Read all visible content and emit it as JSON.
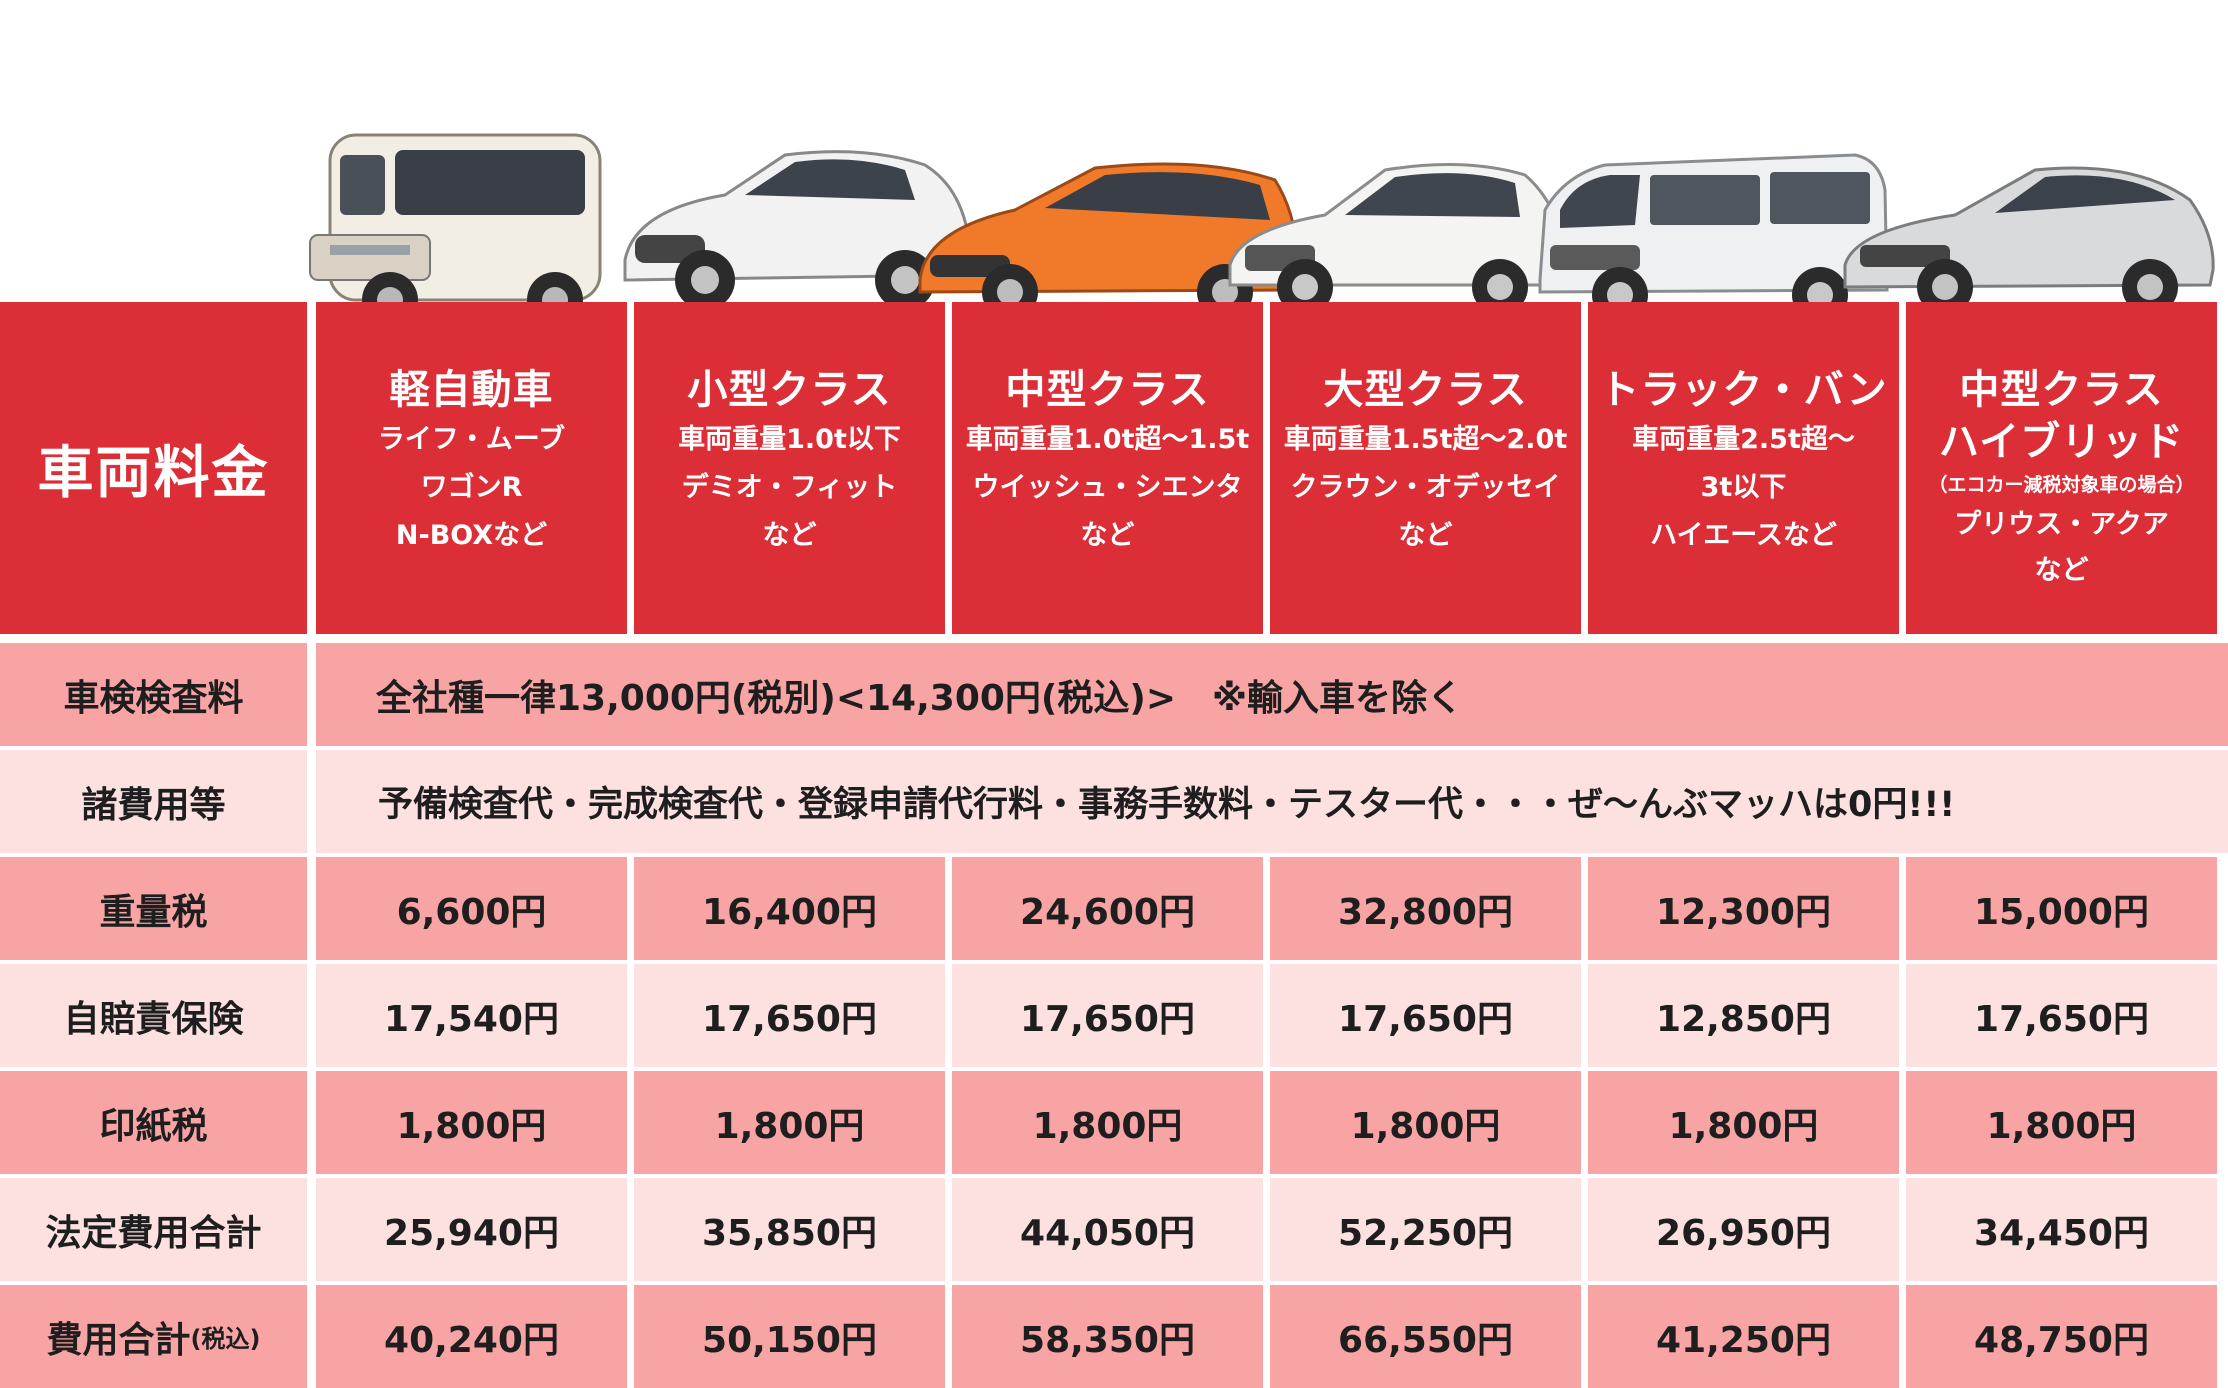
{
  "header": {
    "corner_label": "車両料金",
    "columns": [
      {
        "title": "軽自動車",
        "lines": [
          "ライフ・ムーブ",
          "ワゴンR",
          "N-BOXなど"
        ],
        "car_color": "#f3eee4",
        "car_icon": "kei-car-icon"
      },
      {
        "title": "小型クラス",
        "lines": [
          "車両重量1.0t以下",
          "デミオ・フィット",
          "など"
        ],
        "car_color": "#f2f2f2",
        "car_icon": "compact-car-icon"
      },
      {
        "title": "中型クラス",
        "lines": [
          "車両重量1.0t超〜1.5t",
          "ウイッシュ・シエンタ",
          "など"
        ],
        "car_color": "#f07a2a",
        "car_icon": "minivan-car-icon"
      },
      {
        "title": "大型クラス",
        "lines": [
          "車両重量1.5t超〜2.0t",
          "クラウン・オデッセイ",
          "など"
        ],
        "car_color": "#f4f4f2",
        "car_icon": "sedan-car-icon"
      },
      {
        "title": "トラック・バン",
        "lines": [
          "車両重量2.5t超〜",
          "3t以下",
          "ハイエースなど"
        ],
        "car_color": "#eef0f1",
        "car_icon": "van-car-icon"
      },
      {
        "title": "中型クラス",
        "title2": "ハイブリッド",
        "note": "（エコカー減税対象車の場合）",
        "lines": [
          "プリウス・アクア",
          "など"
        ],
        "car_color": "#d9dadb",
        "car_icon": "hybrid-car-icon"
      }
    ]
  },
  "rows": {
    "inspection": {
      "label": "車検検査料",
      "text": "全社種一律13,000円(税別)<14,300円(税込)>　※輸入車を除く"
    },
    "misc": {
      "label": "諸費用等",
      "text": "予備検査代・完成検査代・登録申請代行料・事務手数料・テスター代・・・ぜ〜んぶマッハは0円!!!"
    },
    "weight_tax": {
      "label": "重量税",
      "values": [
        "6,600円",
        "16,400円",
        "24,600円",
        "32,800円",
        "12,300円",
        "15,000円"
      ]
    },
    "insurance": {
      "label": "自賠責保険",
      "values": [
        "17,540円",
        "17,650円",
        "17,650円",
        "17,650円",
        "12,850円",
        "17,650円"
      ]
    },
    "stamp_tax": {
      "label": "印紙税",
      "values": [
        "1,800円",
        "1,800円",
        "1,800円",
        "1,800円",
        "1,800円",
        "1,800円"
      ]
    },
    "legal_total": {
      "label": "法定費用合計",
      "values": [
        "25,940円",
        "35,850円",
        "44,050円",
        "52,250円",
        "26,950円",
        "34,450円"
      ]
    },
    "grand_total": {
      "label": "費用合計",
      "label_small": "(税込)",
      "values": [
        "40,240円",
        "50,150円",
        "58,350円",
        "66,550円",
        "41,250円",
        "48,750円"
      ]
    }
  },
  "colors": {
    "header_red": "#dc2e36",
    "row_dark": "#f8a4a4",
    "row_light": "#fde0e0"
  }
}
